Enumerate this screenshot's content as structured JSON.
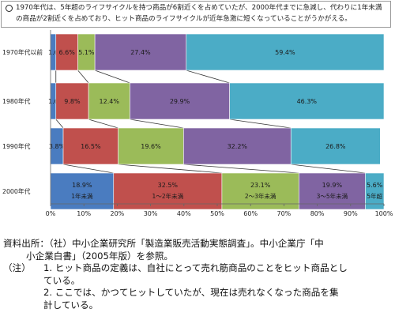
{
  "summary": {
    "text": "1970年代は、5年超のライフサイクルを持つ商品が6割近くを占めていたが、2000年代までに急減し、代わりに1年未満の商品が2割近くを占めており、ヒット商品のライフサイクルが近年急激に短くなっていることがうかがえる。"
  },
  "chart_data": {
    "type": "bar",
    "orientation": "horizontal-stacked-100",
    "categories": [
      "1970年代以前",
      "1980年代",
      "1990年代",
      "2000年代"
    ],
    "series": [
      {
        "name": "1年未満",
        "color": "#4a7cc0",
        "values": [
          1.6,
          1.6,
          3.8,
          18.9
        ],
        "labels": [
          "1.6",
          "1.6",
          "3.8%",
          "18.9%"
        ]
      },
      {
        "name": "1～2年未満",
        "color": "#c0504d",
        "values": [
          6.6,
          9.8,
          16.5,
          32.5
        ],
        "labels": [
          "6.6%",
          "9.8%",
          "16.5%",
          "32.5%"
        ]
      },
      {
        "name": "2～3年未満",
        "color": "#9bbb59",
        "values": [
          5.1,
          12.4,
          19.6,
          23.1
        ],
        "labels": [
          "5.1%",
          "12.4%",
          "19.6%",
          "23.1%"
        ]
      },
      {
        "name": "3～5年未満",
        "color": "#8064a2",
        "values": [
          27.4,
          29.9,
          32.2,
          19.9
        ],
        "labels": [
          "27.4%",
          "29.9%",
          "32.2%",
          "19.9%"
        ]
      },
      {
        "name": "5年超",
        "color": "#4bacc6",
        "values": [
          59.4,
          46.3,
          26.8,
          5.6
        ],
        "labels": [
          "59.4%",
          "46.3%",
          "26.8%",
          "5.6%"
        ]
      }
    ],
    "xlim": [
      0,
      100
    ],
    "xticks": [
      "0%",
      "10%",
      "20%",
      "30%",
      "40%",
      "50%",
      "60%",
      "70%",
      "80%",
      "90%",
      "100%"
    ],
    "grid": false,
    "legend": "inside-bars-2000年代"
  },
  "notes": {
    "source_line1": "資料出所：（社）中小企業研究所「製造業販売活動実態調査」。中小企業庁「中",
    "source_line2": "小企業白書」（2005年版）を参照。",
    "note_label": "（注）",
    "note1_line1": "1. ヒット商品の定義は、自社にとって売れ筋商品のことをヒット商品とし",
    "note1_line2": "ている。",
    "note2_line1": "2. ここでは、かつてヒットしていたが、現在は売れなくなった商品を集",
    "note2_line2": "計している。"
  }
}
